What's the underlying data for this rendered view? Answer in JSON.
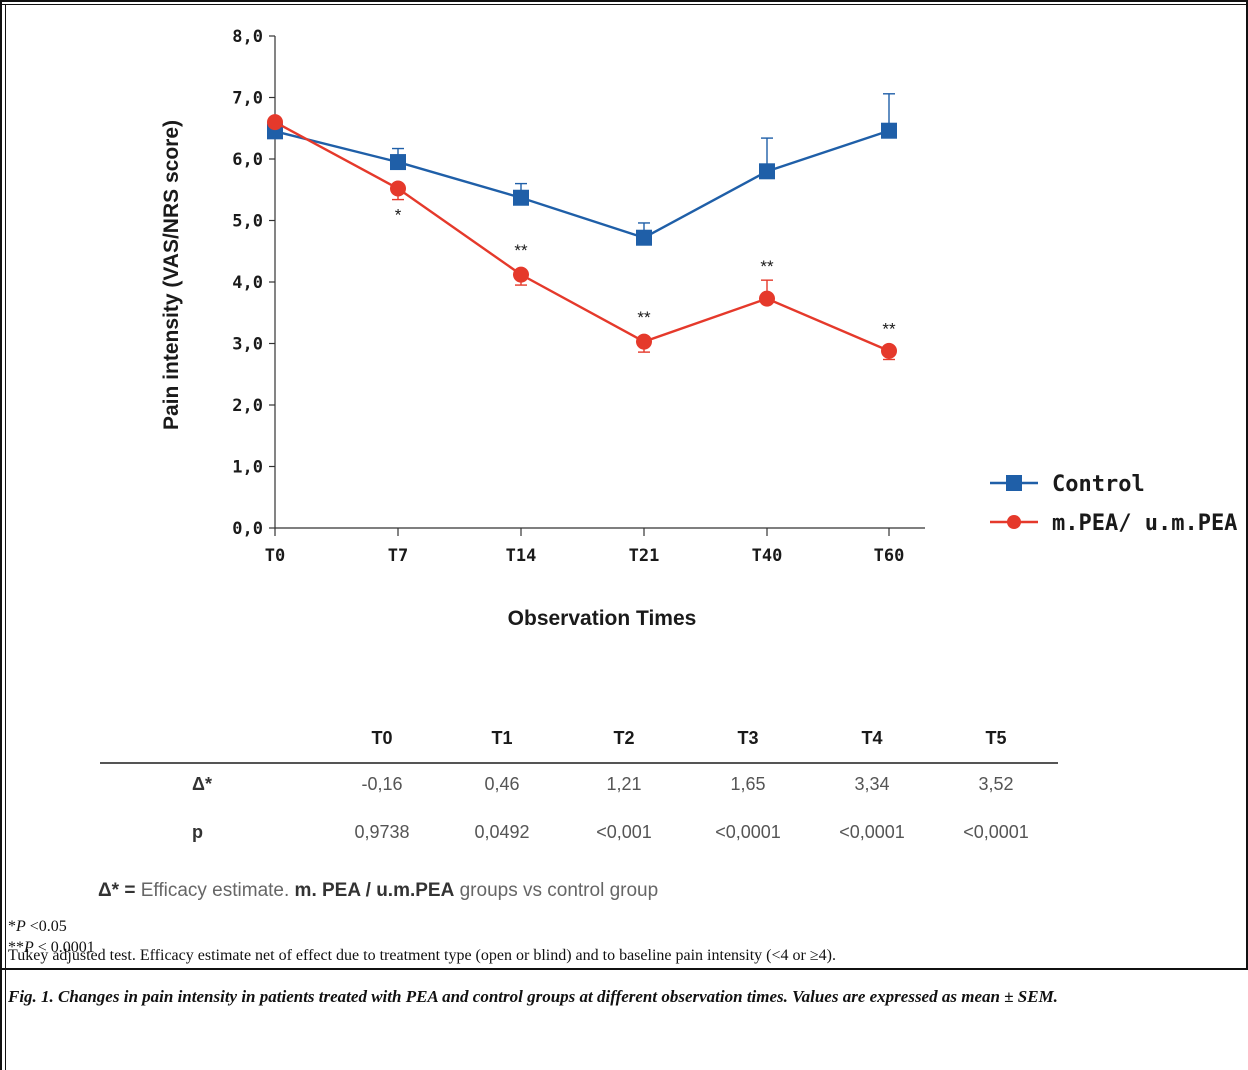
{
  "chart_data": {
    "type": "line",
    "xlabel": "Observation Times",
    "ylabel": "Pain intensity (VAS/NRS score)",
    "categories": [
      "T0",
      "T7",
      "T14",
      "T21",
      "T40",
      "T60"
    ],
    "y_ticks": [
      "8,0",
      "7,0",
      "6,0",
      "5,0",
      "4,0",
      "3,0",
      "2,0",
      "1,0",
      "0,0"
    ],
    "ylim": [
      0,
      8
    ],
    "grid": false,
    "legend_position": "right",
    "series": [
      {
        "name": "Control",
        "color": "#1f5fa8",
        "marker": "square",
        "values": [
          6.45,
          5.95,
          5.37,
          4.72,
          5.8,
          6.46
        ],
        "sem": [
          0,
          0.22,
          0.23,
          0.24,
          0.54,
          0.6
        ]
      },
      {
        "name": "m.PEA/ u.m.PEA",
        "color": "#e5392b",
        "marker": "circle",
        "values": [
          6.6,
          5.52,
          4.12,
          3.03,
          3.73,
          2.88
        ],
        "sem": [
          0,
          0.18,
          0.17,
          0.17,
          0.3,
          0.14
        ]
      }
    ],
    "annotations": [
      "",
      "*",
      "**",
      "**",
      "**",
      "**"
    ]
  },
  "table": {
    "headers": [
      "T0",
      "T1",
      "T2",
      "T3",
      "T4",
      "T5"
    ],
    "rows": [
      {
        "label": "Δ*",
        "values": [
          "-0,16",
          "0,46",
          "1,21",
          "1,65",
          "3,34",
          "3,52"
        ]
      },
      {
        "label": "p",
        "values": [
          "0,9738",
          "0,0492",
          "<0,001",
          "<0,0001",
          "<0,0001",
          "<0,0001"
        ]
      }
    ]
  },
  "footnotes": {
    "delta_prefix": "Δ* = ",
    "delta_text": "Efficacy estimate. ",
    "delta_bold": "m. PEA / u.m.PEA",
    "delta_suffix": " groups vs control group",
    "note1_star": "*",
    "note1_p": "P",
    "note1_rest": " <0.05",
    "note2_star": "**",
    "note2_p": "P",
    "note2_rest": " < 0.0001",
    "note3": "Tukey adjusted test. Efficacy estimate net of effect due to treatment type (open or blind) and to baseline pain intensity (<4 or ≥4)."
  },
  "caption": "Fig. 1.  Changes in pain intensity in patients treated with PEA and control groups at different observation times. Values are expressed as mean ± SEM."
}
